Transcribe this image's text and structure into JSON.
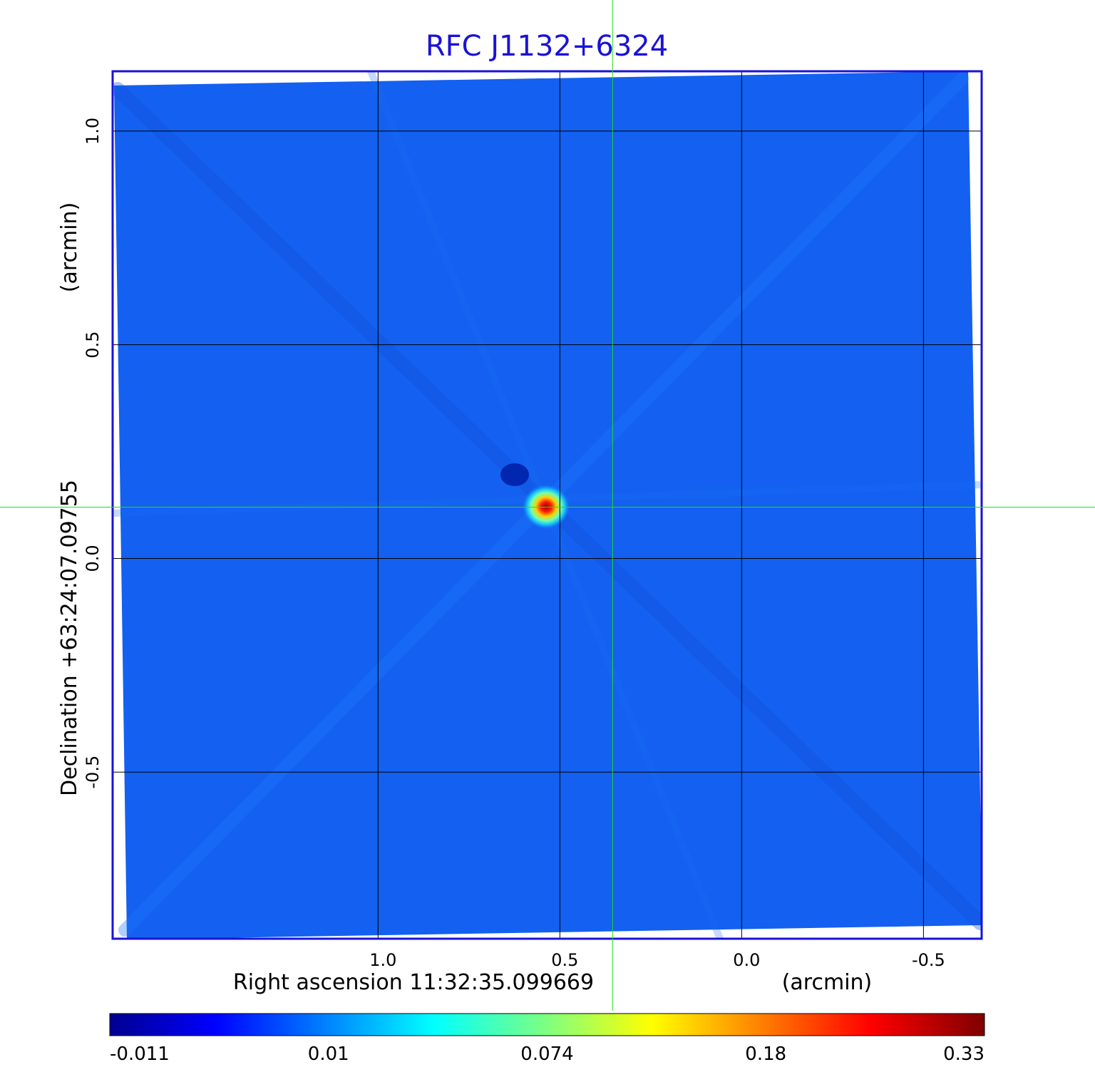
{
  "chart_data": {
    "type": "heatmap",
    "title": "RFC J1132+6324",
    "xlabel": "Right ascension  11:32:35.099669",
    "xlabel_unit": "(arcmin)",
    "ylabel": "Declination  +63:24:07.09755",
    "ylabel_unit": "(arcmin)",
    "xlim": [
      1.73,
      -0.66
    ],
    "ylim": [
      -0.89,
      1.14
    ],
    "x_ticks": [
      {
        "value": 1.0,
        "label": "1.0"
      },
      {
        "value": 0.5,
        "label": "0.5"
      },
      {
        "value": 0.0,
        "label": "0.0"
      },
      {
        "value": -0.5,
        "label": "-0.5"
      }
    ],
    "y_ticks": [
      {
        "value": 1.0,
        "label": "1.0"
      },
      {
        "value": 0.5,
        "label": "0.5"
      },
      {
        "value": 0.0,
        "label": "0.0"
      },
      {
        "value": -0.5,
        "label": "-0.5"
      }
    ],
    "grid": true,
    "crosshair": {
      "x": 0.355,
      "y": 0.12,
      "color": "#22dd22"
    },
    "source_peak": {
      "x": 0.355,
      "y": 0.12,
      "value": 0.33
    },
    "colormap": "jet",
    "colorbar": {
      "placement": "bottom",
      "tick_labels": [
        "-0.011",
        "0.01",
        "0.074",
        "0.18",
        "0.33"
      ]
    },
    "colors": {
      "title": "#1a12d6",
      "frame": "#1a12d6",
      "background_field": "#1460f0",
      "grid": "#000000"
    }
  }
}
